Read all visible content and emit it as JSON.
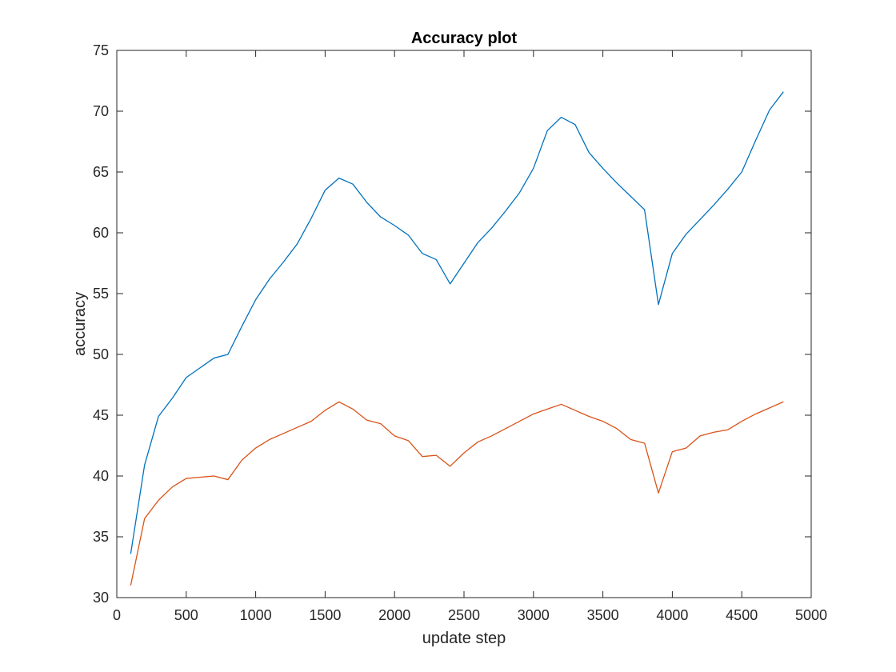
{
  "chart_data": {
    "type": "line",
    "title": "Accuracy plot",
    "xlabel": "update step",
    "ylabel": "accuracy",
    "xlim": [
      0,
      5000
    ],
    "ylim": [
      30,
      75
    ],
    "xticks": [
      0,
      500,
      1000,
      1500,
      2000,
      2500,
      3000,
      3500,
      4000,
      4500,
      5000
    ],
    "yticks": [
      30,
      35,
      40,
      45,
      50,
      55,
      60,
      65,
      70,
      75
    ],
    "grid": false,
    "box": true,
    "x": [
      100,
      200,
      300,
      400,
      500,
      600,
      700,
      800,
      900,
      1000,
      1100,
      1200,
      1300,
      1400,
      1500,
      1600,
      1700,
      1800,
      1900,
      2000,
      2100,
      2200,
      2300,
      2400,
      2500,
      2600,
      2700,
      2800,
      2900,
      3000,
      3100,
      3200,
      3300,
      3400,
      3500,
      3600,
      3700,
      3800,
      3900,
      4000,
      4100,
      4200,
      4300,
      4400,
      4500,
      4600,
      4700,
      4800
    ],
    "series": [
      {
        "color": "#0072BD",
        "values": [
          33.6,
          40.9,
          44.9,
          46.4,
          48.1,
          48.9,
          49.7,
          50.0,
          52.3,
          54.5,
          56.2,
          57.6,
          59.1,
          61.2,
          63.5,
          64.5,
          64.0,
          62.5,
          61.3,
          60.6,
          59.8,
          58.3,
          57.8,
          55.8,
          57.5,
          59.2,
          60.4,
          61.8,
          63.3,
          65.3,
          68.4,
          69.5,
          68.9,
          66.6,
          65.3,
          64.1,
          63.0,
          61.9,
          54.1,
          58.3,
          59.9,
          61.1,
          62.3,
          63.6,
          65.0,
          67.6,
          70.1,
          71.6
        ]
      },
      {
        "color": "#D95319",
        "values": [
          31.0,
          36.5,
          38.0,
          39.1,
          39.8,
          39.9,
          40.0,
          39.7,
          41.3,
          42.3,
          43.0,
          43.5,
          44.0,
          44.5,
          45.4,
          46.1,
          45.5,
          44.6,
          44.3,
          43.3,
          42.9,
          41.6,
          41.7,
          40.8,
          41.9,
          42.8,
          43.3,
          43.9,
          44.5,
          45.1,
          45.5,
          45.9,
          45.4,
          44.9,
          44.5,
          43.9,
          43.0,
          42.7,
          38.6,
          42.0,
          42.3,
          43.3,
          43.6,
          43.8,
          44.5,
          45.1,
          45.6,
          46.1
        ]
      }
    ]
  }
}
